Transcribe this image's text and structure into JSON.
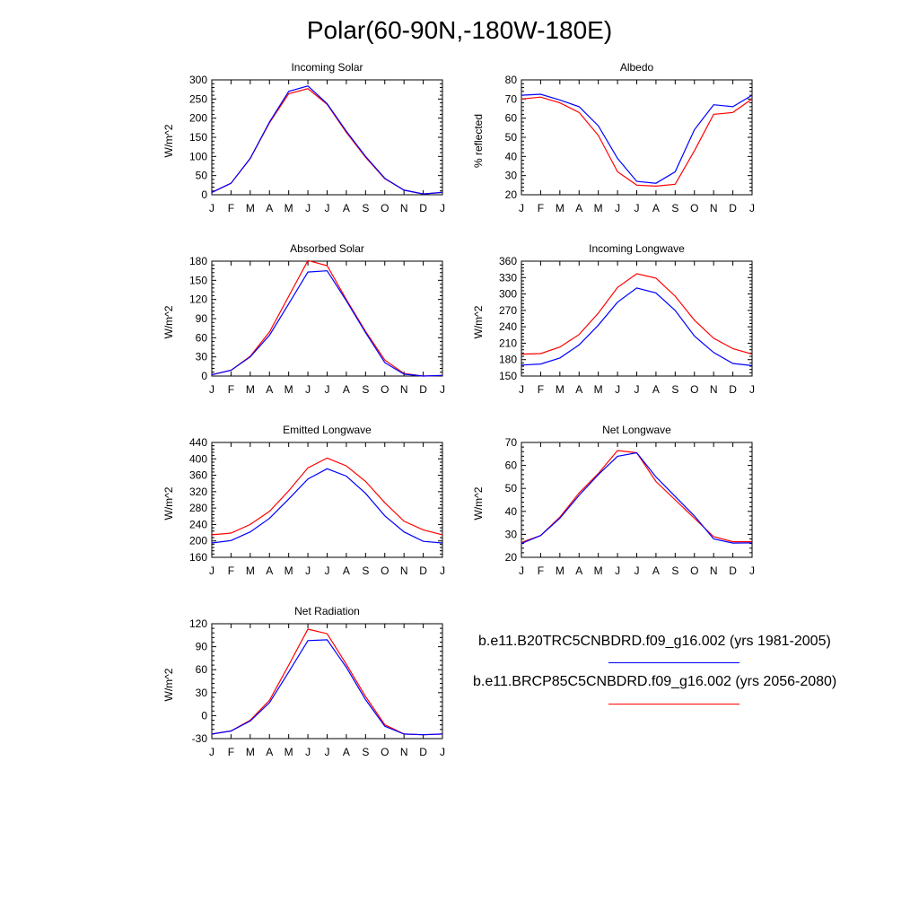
{
  "title": "Polar(60-90N,-180W-180E)",
  "legend": {
    "entries": [
      {
        "label": "b.e11.B20TRC5CNBDRD.f09_g16.002 (yrs 1981-2005)",
        "color": "#0000ff"
      },
      {
        "label": "b.e11.BRCP85C5CNBDRD.f09_g16.002 (yrs 2056-2080)",
        "color": "#ff0000"
      }
    ]
  },
  "chart_data": [
    {
      "type": "line",
      "title": "Incoming Solar",
      "ylabel": "W/m^2",
      "categories": [
        "J",
        "F",
        "M",
        "A",
        "M",
        "J",
        "J",
        "A",
        "S",
        "O",
        "N",
        "D",
        "J"
      ],
      "ylim": [
        0,
        300
      ],
      "yticks": [
        0,
        50,
        100,
        150,
        200,
        250,
        300
      ],
      "series": [
        {
          "name": "b.e11.B20TRC5CNBDRD.f09_g16.002 (yrs 1981-2005)",
          "color": "#0000ff",
          "values": [
            6,
            30,
            95,
            190,
            270,
            284,
            238,
            166,
            100,
            43,
            12,
            2,
            6
          ]
        },
        {
          "name": "b.e11.BRCP85C5CNBDRD.f09_g16.002 (yrs 2056-2080)",
          "color": "#ff0000",
          "values": [
            6,
            30,
            95,
            188,
            264,
            277,
            236,
            163,
            98,
            42,
            12,
            2,
            6
          ]
        }
      ]
    },
    {
      "type": "line",
      "title": "Albedo",
      "ylabel": "% reflected",
      "categories": [
        "J",
        "F",
        "M",
        "A",
        "M",
        "J",
        "J",
        "A",
        "S",
        "O",
        "N",
        "D",
        "J"
      ],
      "ylim": [
        20,
        80
      ],
      "yticks": [
        20,
        30,
        40,
        50,
        60,
        70,
        80
      ],
      "series": [
        {
          "name": "b.e11.B20TRC5CNBDRD.f09_g16.002 (yrs 1981-2005)",
          "color": "#0000ff",
          "values": [
            72,
            72.5,
            69.5,
            66,
            56,
            39,
            27,
            26,
            32,
            54,
            67,
            66,
            72
          ]
        },
        {
          "name": "b.e11.BRCP85C5CNBDRD.f09_g16.002 (yrs 2056-2080)",
          "color": "#ff0000",
          "values": [
            70,
            71,
            68,
            63,
            51,
            32,
            25,
            24.5,
            25.5,
            43,
            62,
            63,
            70
          ]
        }
      ]
    },
    {
      "type": "line",
      "title": "Absorbed Solar",
      "ylabel": "W/m^2",
      "categories": [
        "J",
        "F",
        "M",
        "A",
        "M",
        "J",
        "J",
        "A",
        "S",
        "O",
        "N",
        "D",
        "J"
      ],
      "ylim": [
        0,
        180
      ],
      "yticks": [
        0,
        30,
        60,
        90,
        120,
        150,
        180
      ],
      "series": [
        {
          "name": "b.e11.B20TRC5CNBDRD.f09_g16.002 (yrs 1981-2005)",
          "color": "#0000ff",
          "values": [
            2,
            9,
            30,
            64,
            113,
            163,
            165,
            118,
            68,
            21,
            3,
            0,
            1
          ]
        },
        {
          "name": "b.e11.BRCP85C5CNBDRD.f09_g16.002 (yrs 2056-2080)",
          "color": "#ff0000",
          "values": [
            2,
            9,
            31,
            69,
            125,
            181,
            173,
            120,
            70,
            25,
            4,
            0,
            1
          ]
        }
      ]
    },
    {
      "type": "line",
      "title": "Incoming Longwave",
      "ylabel": "W/m^2",
      "categories": [
        "J",
        "F",
        "M",
        "A",
        "M",
        "J",
        "J",
        "A",
        "S",
        "O",
        "N",
        "D",
        "J"
      ],
      "ylim": [
        150,
        360
      ],
      "yticks": [
        150,
        180,
        210,
        240,
        270,
        300,
        330,
        360
      ],
      "series": [
        {
          "name": "b.e11.B20TRC5CNBDRD.f09_g16.002 (yrs 1981-2005)",
          "color": "#0000ff",
          "values": [
            170,
            172,
            183,
            207,
            243,
            285,
            311,
            302,
            270,
            223,
            193,
            173,
            169
          ]
        },
        {
          "name": "b.e11.BRCP85C5CNBDRD.f09_g16.002 (yrs 2056-2080)",
          "color": "#ff0000",
          "values": [
            190,
            191,
            203,
            226,
            265,
            312,
            337,
            329,
            296,
            252,
            219,
            200,
            190
          ]
        }
      ]
    },
    {
      "type": "line",
      "title": "Emitted Longwave",
      "ylabel": "W/m^2",
      "categories": [
        "J",
        "F",
        "M",
        "A",
        "M",
        "J",
        "J",
        "A",
        "S",
        "O",
        "N",
        "D",
        "J"
      ],
      "ylim": [
        160,
        440
      ],
      "yticks": [
        160,
        200,
        240,
        280,
        320,
        360,
        400,
        440
      ],
      "series": [
        {
          "name": "b.e11.B20TRC5CNBDRD.f09_g16.002 (yrs 1981-2005)",
          "color": "#0000ff",
          "values": [
            195,
            201,
            222,
            255,
            302,
            351,
            376,
            358,
            316,
            261,
            222,
            199,
            195
          ]
        },
        {
          "name": "b.e11.BRCP85C5CNBDRD.f09_g16.002 (yrs 2056-2080)",
          "color": "#ff0000",
          "values": [
            215,
            219,
            240,
            272,
            322,
            378,
            402,
            383,
            345,
            293,
            248,
            227,
            215
          ]
        }
      ]
    },
    {
      "type": "line",
      "title": "Net Longwave",
      "ylabel": "W/m^2",
      "categories": [
        "J",
        "F",
        "M",
        "A",
        "M",
        "J",
        "J",
        "A",
        "S",
        "O",
        "N",
        "D",
        "J"
      ],
      "ylim": [
        20,
        70
      ],
      "yticks": [
        20,
        30,
        40,
        50,
        60,
        70
      ],
      "series": [
        {
          "name": "b.e11.B20TRC5CNBDRD.f09_g16.002 (yrs 1981-2005)",
          "color": "#0000ff",
          "values": [
            26,
            29.5,
            37,
            47,
            56,
            64,
            65.5,
            55,
            46.5,
            38,
            28,
            26.2,
            26.3
          ]
        },
        {
          "name": "b.e11.BRCP85C5CNBDRD.f09_g16.002 (yrs 2056-2080)",
          "color": "#ff0000",
          "values": [
            26.5,
            29.5,
            37.5,
            48,
            56.5,
            66.5,
            65.5,
            53,
            45,
            37,
            29,
            26.8,
            26.8
          ]
        }
      ]
    },
    {
      "type": "line",
      "title": "Net Radiation",
      "ylabel": "W/m^2",
      "categories": [
        "J",
        "F",
        "M",
        "A",
        "M",
        "J",
        "J",
        "A",
        "S",
        "O",
        "N",
        "D",
        "J"
      ],
      "ylim": [
        -30,
        120
      ],
      "yticks": [
        -30,
        0,
        30,
        60,
        90,
        120
      ],
      "series": [
        {
          "name": "b.e11.B20TRC5CNBDRD.f09_g16.002 (yrs 1981-2005)",
          "color": "#0000ff",
          "values": [
            -24,
            -20,
            -7,
            17,
            57,
            98,
            99,
            63,
            21,
            -14,
            -24,
            -25,
            -24
          ]
        },
        {
          "name": "b.e11.BRCP85C5CNBDRD.f09_g16.002 (yrs 2056-2080)",
          "color": "#ff0000",
          "values": [
            -24,
            -20,
            -6,
            20,
            66,
            113,
            107,
            67,
            25,
            -12,
            -24,
            -25,
            -24
          ]
        }
      ]
    }
  ]
}
